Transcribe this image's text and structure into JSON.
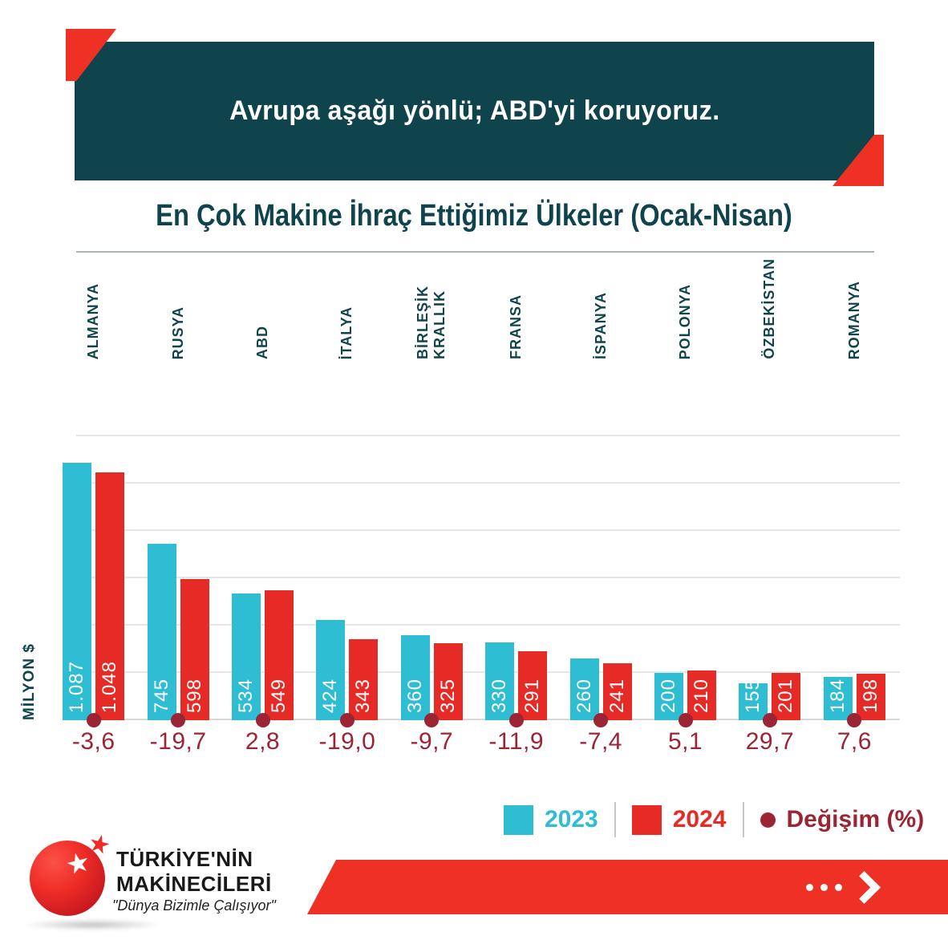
{
  "header": {
    "banner_text": "Avrupa aşağı yönlü; ABD'yi koruyoruz."
  },
  "title": "En Çok Makine İhraç Ettiğimiz Ülkeler (Ocak-Nisan)",
  "chart_data": {
    "type": "bar",
    "title": "En Çok Makine İhraç Ettiğimiz Ülkeler (Ocak-Nisan)",
    "ylabel": "MİLYON $",
    "ylim": [
      0,
      1200
    ],
    "grid_step": 200,
    "grid": "horizontal",
    "legend_position": "bottom-right",
    "categories": [
      "ALMANYA",
      "RUSYA",
      "ABD",
      "İTALYA",
      "BİRLEŞİK\nKRALLIK",
      "FRANSA",
      "İSPANYA",
      "POLONYA",
      "ÖZBEKİSTAN",
      "ROMANYA"
    ],
    "series": [
      {
        "name": "2023",
        "color": "#2ebdd2",
        "values": [
          1087,
          745,
          534,
          424,
          360,
          330,
          260,
          200,
          155,
          184
        ],
        "value_labels": [
          "1.087",
          "745",
          "534",
          "424",
          "360",
          "330",
          "260",
          "200",
          "155",
          "184"
        ]
      },
      {
        "name": "2024",
        "color": "#e62a26",
        "values": [
          1048,
          598,
          549,
          343,
          325,
          291,
          241,
          210,
          201,
          198
        ],
        "value_labels": [
          "1.048",
          "598",
          "549",
          "343",
          "325",
          "291",
          "241",
          "210",
          "201",
          "198"
        ]
      }
    ],
    "change_series": {
      "name": "Değişim (%)",
      "color": "#9b2435",
      "marker": "circle-dot",
      "values": [
        "-3,6",
        "-19,7",
        "2,8",
        "-19,0",
        "-9,7",
        "-11,9",
        "-7,4",
        "5,1",
        "29,7",
        "7,6"
      ]
    }
  },
  "legend": {
    "items": [
      {
        "label": "2023",
        "color": "#2ebdd2",
        "swatch": "square"
      },
      {
        "label": "2024",
        "color": "#e62a26",
        "swatch": "square"
      },
      {
        "label": "Değişim (%)",
        "color": "#9b2435",
        "swatch": "circle"
      }
    ]
  },
  "footer": {
    "brand_line1": "TÜRKİYE'NİN",
    "brand_line2": "MAKİNECİLERİ",
    "tagline": "\"Dünya Bizimle Çalışıyor\"",
    "logo_star_glyph": "★",
    "arrow_icon": "chevron-right-arrow"
  },
  "colors": {
    "banner_teal": "#0f444c",
    "accent_red": "#ee3124",
    "bar_2023": "#2ebdd2",
    "bar_2024": "#e62a26",
    "change_dark_red": "#9b2435",
    "gridline": "#e6e6e6"
  }
}
